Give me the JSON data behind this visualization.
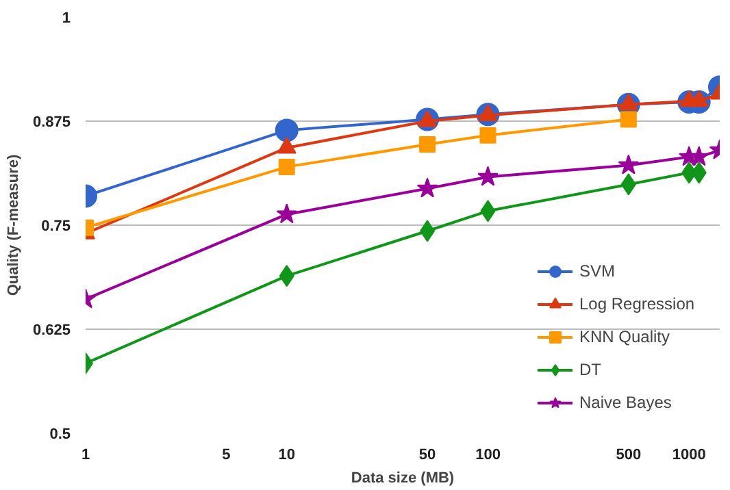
{
  "chart_data": {
    "type": "line",
    "xlabel": "Data size (MB)",
    "ylabel": "Quality (F-measure)",
    "x": [
      1,
      10,
      50,
      100,
      500,
      1000,
      1120,
      1420
    ],
    "log": "x",
    "xlim": [
      1,
      1420
    ],
    "xticks": [
      1,
      5,
      10,
      50,
      100,
      500,
      1000
    ],
    "ylim": [
      0.5,
      1
    ],
    "yticks": [
      0.5,
      0.625,
      0.75,
      0.875,
      1
    ],
    "grid": "y",
    "legend": "right",
    "line_style": "solid",
    "series": [
      {
        "name": "SVM",
        "color": "#3366cc",
        "marker": "circle",
        "values": [
          0.785,
          0.864,
          0.877,
          0.883,
          0.895,
          0.898,
          0.898,
          0.916
        ]
      },
      {
        "name": "Log Regression",
        "color": "#dc3912",
        "marker": "triangle",
        "values": [
          0.74,
          0.843,
          0.875,
          0.882,
          0.895,
          0.899,
          0.899,
          0.908
        ]
      },
      {
        "name": "KNN Quality",
        "color": "#ff9900",
        "marker": "square",
        "values": [
          0.747,
          0.82,
          0.847,
          0.858,
          0.877,
          null,
          null,
          null
        ]
      },
      {
        "name": "DT",
        "color": "#109618",
        "marker": "diamond",
        "values": [
          0.584,
          0.689,
          0.743,
          0.767,
          0.799,
          0.813,
          0.813,
          null
        ]
      },
      {
        "name": "Naive Bayes",
        "color": "#990099",
        "marker": "star",
        "values": [
          0.661,
          0.763,
          0.794,
          0.808,
          0.822,
          0.832,
          0.832,
          0.84
        ]
      }
    ]
  }
}
